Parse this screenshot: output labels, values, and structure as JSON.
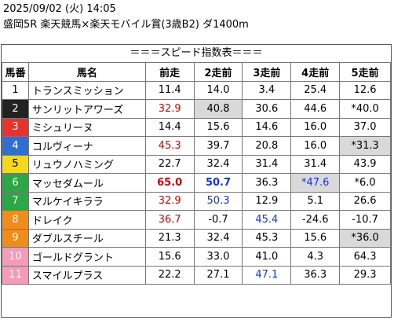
{
  "header": {
    "line1": "2025/09/02 (火) 14:05",
    "line2": "盛岡5R 楽天競馬×楽天モバイル賞(3歳B2) ダ1400m"
  },
  "table_title": "＝＝＝スピード指数表＝＝＝",
  "columns": [
    "馬番",
    "馬名",
    "前走",
    "2走前",
    "3走前",
    "4走前",
    "5走前"
  ],
  "frame_colors": [
    "#ffffff",
    "#222222",
    "#e8322c",
    "#2f6fd0",
    "#f5d816",
    "#2aa845",
    "#f08c1a",
    "#f79ab9"
  ],
  "rows": [
    {
      "num": "1",
      "frame": 0,
      "name": "トランスミッション",
      "v": [
        {
          "t": "11.4"
        },
        {
          "t": "14.0"
        },
        {
          "t": "3.4"
        },
        {
          "t": "25.4"
        },
        {
          "t": "12.6"
        }
      ]
    },
    {
      "num": "2",
      "frame": 1,
      "name": "サンリットアワーズ",
      "v": [
        {
          "t": "32.9",
          "c": "red"
        },
        {
          "t": "40.8",
          "bg": "grey"
        },
        {
          "t": "30.6"
        },
        {
          "t": "44.6"
        },
        {
          "t": "*40.0"
        }
      ]
    },
    {
      "num": "3",
      "frame": 2,
      "name": "ミシュリーヌ",
      "v": [
        {
          "t": "14.4"
        },
        {
          "t": "15.6"
        },
        {
          "t": "14.6"
        },
        {
          "t": "16.0"
        },
        {
          "t": "37.0"
        }
      ]
    },
    {
      "num": "4",
      "frame": 3,
      "name": "コルヴィーナ",
      "v": [
        {
          "t": "45.3",
          "c": "red"
        },
        {
          "t": "39.7"
        },
        {
          "t": "20.8"
        },
        {
          "t": "16.0"
        },
        {
          "t": "*31.3",
          "bg": "grey"
        }
      ]
    },
    {
      "num": "5",
      "frame": 4,
      "name": "リュウノハミング",
      "v": [
        {
          "t": "22.7"
        },
        {
          "t": "32.4"
        },
        {
          "t": "31.4"
        },
        {
          "t": "31.4"
        },
        {
          "t": "43.9"
        }
      ]
    },
    {
      "num": "6",
      "frame": 5,
      "name": "マッセダムール",
      "v": [
        {
          "t": "65.0",
          "c": "red",
          "b": true
        },
        {
          "t": "50.7",
          "c": "blue",
          "b": true
        },
        {
          "t": "36.3"
        },
        {
          "t": "*47.6",
          "c": "blue",
          "bg": "grey"
        },
        {
          "t": "*6.0"
        }
      ]
    },
    {
      "num": "7",
      "frame": 5,
      "name": "マルケイキララ",
      "v": [
        {
          "t": "32.9",
          "c": "red"
        },
        {
          "t": "50.3",
          "c": "blue"
        },
        {
          "t": "12.9"
        },
        {
          "t": "5.1"
        },
        {
          "t": "26.6"
        }
      ]
    },
    {
      "num": "8",
      "frame": 6,
      "name": "ドレイク",
      "v": [
        {
          "t": "36.7",
          "c": "red"
        },
        {
          "t": "-0.7"
        },
        {
          "t": "45.4",
          "c": "blue"
        },
        {
          "t": "-24.6"
        },
        {
          "t": "-10.7"
        }
      ]
    },
    {
      "num": "9",
      "frame": 6,
      "name": "ダブルスチール",
      "v": [
        {
          "t": "21.3"
        },
        {
          "t": "32.4"
        },
        {
          "t": "45.3"
        },
        {
          "t": "15.6"
        },
        {
          "t": "*36.0",
          "bg": "grey"
        }
      ]
    },
    {
      "num": "10",
      "frame": 7,
      "name": "ゴールドグラント",
      "v": [
        {
          "t": "15.6"
        },
        {
          "t": "33.0"
        },
        {
          "t": "41.0"
        },
        {
          "t": "4.3"
        },
        {
          "t": "64.3"
        }
      ]
    },
    {
      "num": "11",
      "frame": 7,
      "name": "スマイルプラス",
      "v": [
        {
          "t": "22.2"
        },
        {
          "t": "27.1"
        },
        {
          "t": "47.1",
          "c": "blue"
        },
        {
          "t": "36.3"
        },
        {
          "t": "29.3"
        }
      ]
    }
  ]
}
